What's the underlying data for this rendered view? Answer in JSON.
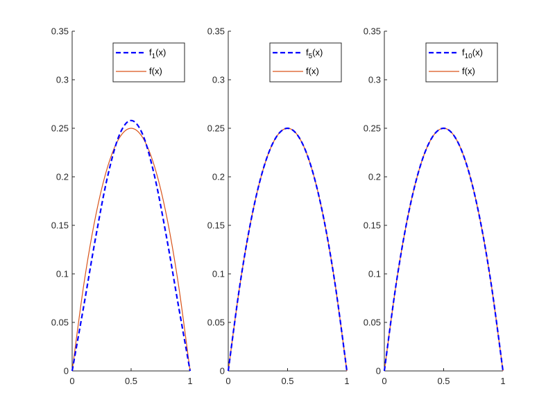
{
  "chart_data": [
    {
      "type": "line",
      "xlim": [
        0,
        1
      ],
      "ylim": [
        0,
        0.35
      ],
      "x_ticks": [
        0,
        0.5,
        1
      ],
      "x_tick_labels": [
        "0",
        "0.5",
        "1"
      ],
      "y_ticks": [
        0,
        0.05,
        0.1,
        0.15,
        0.2,
        0.25,
        0.3,
        0.35
      ],
      "y_tick_labels": [
        "0",
        "0.05",
        "0.1",
        "0.15",
        "0.2",
        "0.25",
        "0.3",
        "0.35"
      ],
      "grid": false,
      "legend_position": "top-right",
      "series": [
        {
          "name": "f1(x)",
          "label_base": "f",
          "label_sub": "1",
          "label_tail": "(x)",
          "color": "#0000ff",
          "style": "dashed",
          "x": [
            0,
            0.1,
            0.2,
            0.3,
            0.4,
            0.5,
            0.6,
            0.7,
            0.8,
            0.9,
            1.0
          ],
          "y": [
            0,
            0.068,
            0.138,
            0.2,
            0.243,
            0.258,
            0.243,
            0.2,
            0.138,
            0.068,
            0
          ]
        },
        {
          "name": "f(x)",
          "label_base": "f(x)",
          "label_sub": "",
          "label_tail": "",
          "color": "#d95319",
          "style": "solid",
          "x": [
            0,
            0.1,
            0.2,
            0.3,
            0.4,
            0.5,
            0.6,
            0.7,
            0.8,
            0.9,
            1.0
          ],
          "y": [
            0,
            0.09,
            0.16,
            0.21,
            0.24,
            0.25,
            0.24,
            0.21,
            0.16,
            0.09,
            0
          ]
        }
      ]
    },
    {
      "type": "line",
      "xlim": [
        0,
        1
      ],
      "ylim": [
        0,
        0.35
      ],
      "x_ticks": [
        0,
        0.5,
        1
      ],
      "x_tick_labels": [
        "0",
        "0.5",
        "1"
      ],
      "y_ticks": [
        0,
        0.05,
        0.1,
        0.15,
        0.2,
        0.25,
        0.3,
        0.35
      ],
      "y_tick_labels": [
        "0",
        "0.05",
        "0.1",
        "0.15",
        "0.2",
        "0.25",
        "0.3",
        "0.35"
      ],
      "grid": false,
      "legend_position": "top-right",
      "series": [
        {
          "name": "f5(x)",
          "label_base": "f",
          "label_sub": "5",
          "label_tail": "(x)",
          "color": "#0000ff",
          "style": "dashed",
          "x": [
            0,
            0.1,
            0.2,
            0.3,
            0.4,
            0.5,
            0.6,
            0.7,
            0.8,
            0.9,
            1.0
          ],
          "y": [
            0,
            0.09,
            0.16,
            0.21,
            0.24,
            0.25,
            0.24,
            0.21,
            0.16,
            0.09,
            0
          ]
        },
        {
          "name": "f(x)",
          "label_base": "f(x)",
          "label_sub": "",
          "label_tail": "",
          "color": "#d95319",
          "style": "solid",
          "x": [
            0,
            0.1,
            0.2,
            0.3,
            0.4,
            0.5,
            0.6,
            0.7,
            0.8,
            0.9,
            1.0
          ],
          "y": [
            0,
            0.09,
            0.16,
            0.21,
            0.24,
            0.25,
            0.24,
            0.21,
            0.16,
            0.09,
            0
          ]
        }
      ]
    },
    {
      "type": "line",
      "xlim": [
        0,
        1
      ],
      "ylim": [
        0,
        0.35
      ],
      "x_ticks": [
        0,
        0.5,
        1
      ],
      "x_tick_labels": [
        "0",
        "0.5",
        "1"
      ],
      "y_ticks": [
        0,
        0.05,
        0.1,
        0.15,
        0.2,
        0.25,
        0.3,
        0.35
      ],
      "y_tick_labels": [
        "0",
        "0.05",
        "0.1",
        "0.15",
        "0.2",
        "0.25",
        "0.3",
        "0.35"
      ],
      "grid": false,
      "legend_position": "top-right",
      "series": [
        {
          "name": "f10(x)",
          "label_base": "f",
          "label_sub": "10",
          "label_tail": "(x)",
          "color": "#0000ff",
          "style": "dashed",
          "x": [
            0,
            0.1,
            0.2,
            0.3,
            0.4,
            0.5,
            0.6,
            0.7,
            0.8,
            0.9,
            1.0
          ],
          "y": [
            0,
            0.09,
            0.16,
            0.21,
            0.24,
            0.25,
            0.24,
            0.21,
            0.16,
            0.09,
            0
          ]
        },
        {
          "name": "f(x)",
          "label_base": "f(x)",
          "label_sub": "",
          "label_tail": "",
          "color": "#d95319",
          "style": "solid",
          "x": [
            0,
            0.1,
            0.2,
            0.3,
            0.4,
            0.5,
            0.6,
            0.7,
            0.8,
            0.9,
            1.0
          ],
          "y": [
            0,
            0.09,
            0.16,
            0.21,
            0.24,
            0.25,
            0.24,
            0.21,
            0.16,
            0.09,
            0
          ]
        }
      ]
    }
  ]
}
